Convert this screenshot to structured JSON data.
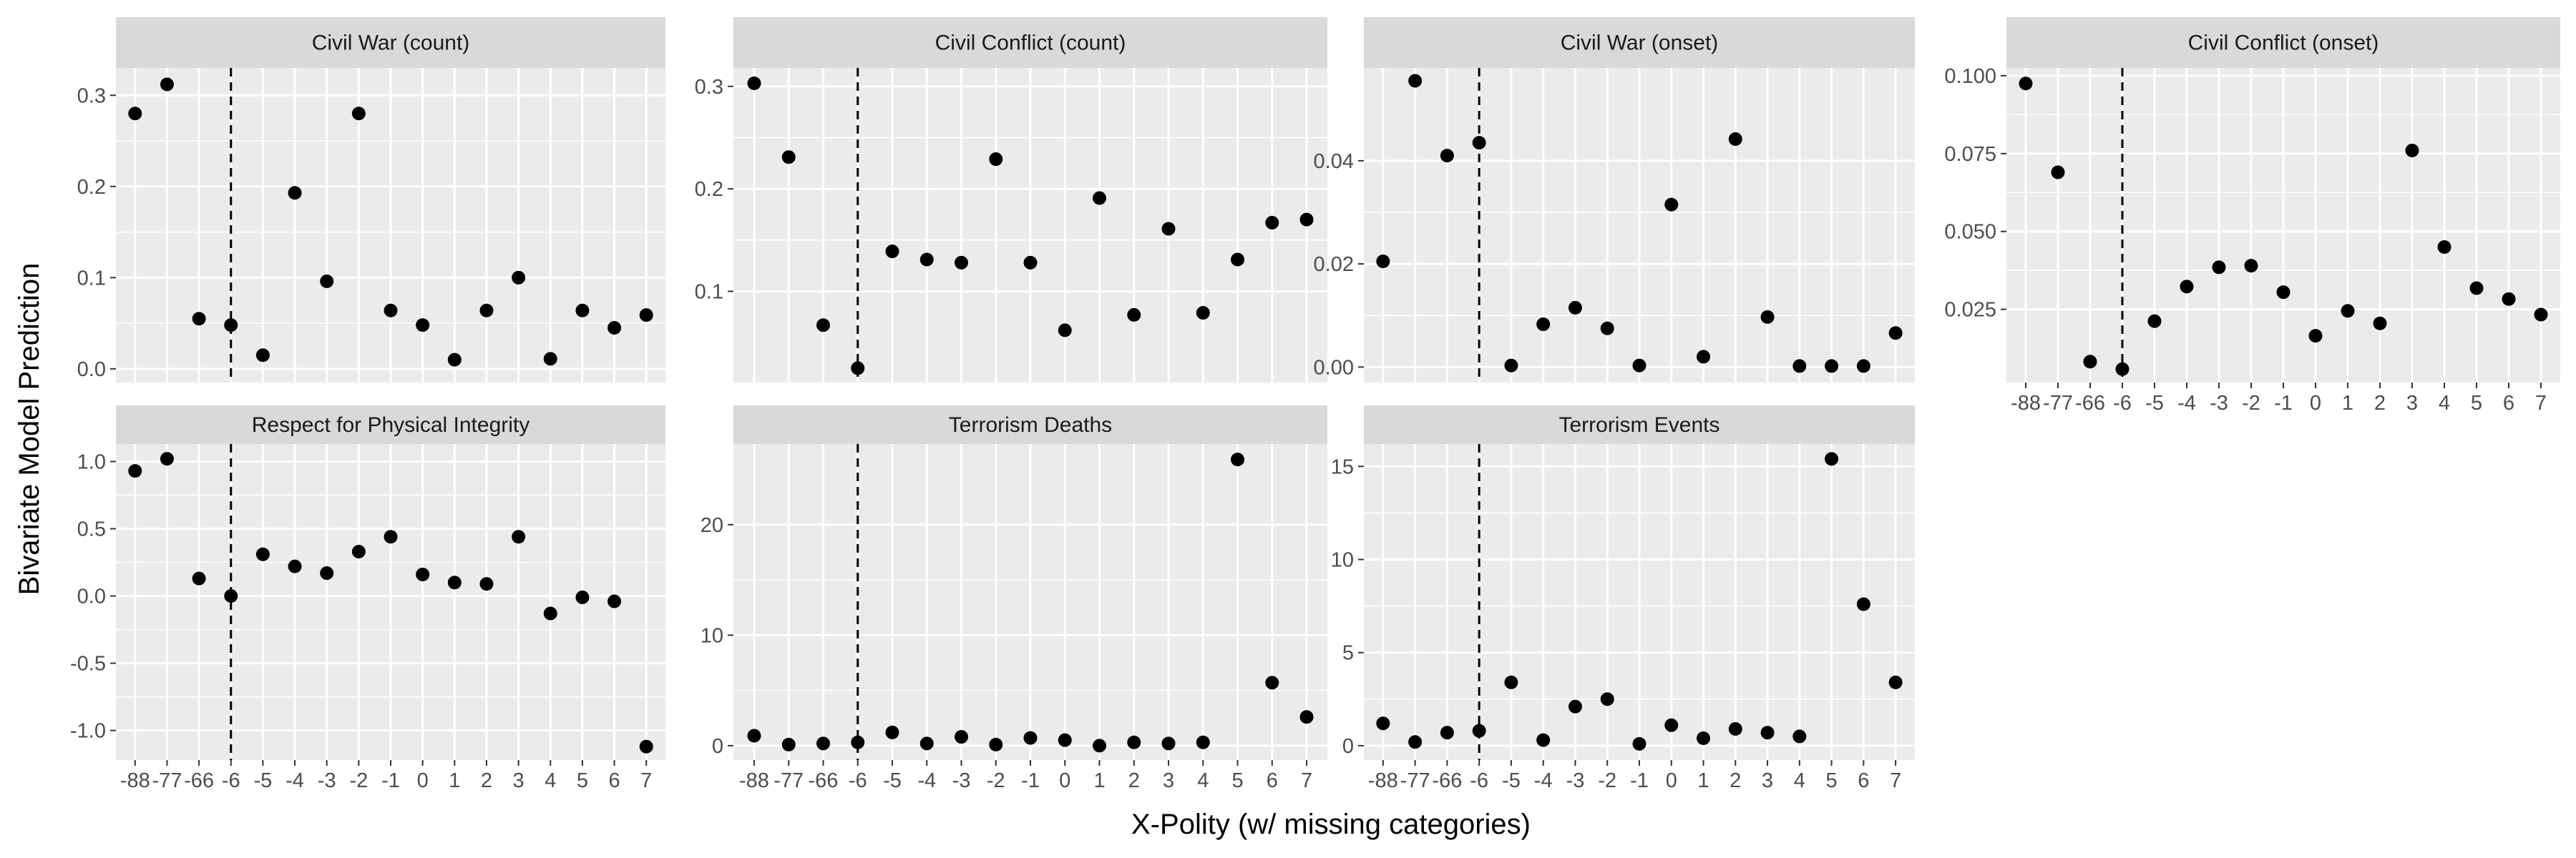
{
  "chart_data": {
    "type": "scatter",
    "facet_layout": "4 columns x 2 rows, free y scales",
    "xlabel": "X-Polity (w/ missing categories)",
    "ylabel": "Bivariate Model Prediction",
    "x_categories": [
      "-88",
      "-77",
      "-66",
      "-6",
      "-5",
      "-4",
      "-3",
      "-2",
      "-1",
      "0",
      "1",
      "2",
      "3",
      "4",
      "5",
      "6",
      "7"
    ],
    "reference_line": {
      "style": "dashed",
      "x": "-6"
    },
    "grid": true,
    "panel_background": "#ebebeb",
    "strip_background": "#d9d9d9",
    "point_color": "#000000",
    "panels": [
      {
        "title": "Civil War (count)",
        "yticks": [
          "0.0",
          "0.1",
          "0.2",
          "0.3"
        ],
        "ylim": [
          -0.015,
          0.33
        ],
        "values": [
          0.28,
          0.312,
          0.055,
          0.048,
          0.015,
          0.193,
          0.096,
          0.28,
          0.064,
          0.048,
          0.01,
          0.064,
          0.1,
          0.011,
          0.064,
          0.045,
          0.059
        ]
      },
      {
        "title": "Civil Conflict (count)",
        "yticks": [
          "0.1",
          "0.2",
          "0.3"
        ],
        "ylim": [
          0.011,
          0.318
        ],
        "values": [
          0.303,
          0.231,
          0.067,
          0.025,
          0.139,
          0.131,
          0.128,
          0.229,
          0.128,
          0.062,
          0.191,
          0.077,
          0.161,
          0.079,
          0.131,
          0.167,
          0.17
        ]
      },
      {
        "title": "Civil War (onset)",
        "yticks": [
          "0.00",
          "0.02",
          "0.04"
        ],
        "ylim": [
          -0.003,
          0.058
        ],
        "values": [
          0.0205,
          0.0555,
          0.041,
          0.0435,
          0.0003,
          0.0083,
          0.0115,
          0.0075,
          0.0003,
          0.0315,
          0.002,
          0.0442,
          0.0097,
          0.0002,
          0.0002,
          0.0002,
          0.0066
        ]
      },
      {
        "title": "Civil Conflict (onset)",
        "yticks": [
          "0.025",
          "0.050",
          "0.075",
          "0.100"
        ],
        "ylim": [
          0.0015,
          0.1025
        ],
        "values": [
          0.0975,
          0.069,
          0.0082,
          0.0058,
          0.0212,
          0.0323,
          0.0385,
          0.039,
          0.0305,
          0.0165,
          0.0245,
          0.0205,
          0.076,
          0.045,
          0.0318,
          0.0283,
          0.0233
        ]
      },
      {
        "title": "Respect for Physical Integrity",
        "yticks": [
          "-1.0",
          "-0.5",
          "0.0",
          "0.5",
          "1.0"
        ],
        "ylim": [
          -1.22,
          1.13
        ],
        "values": [
          0.93,
          1.02,
          0.13,
          0.0,
          0.31,
          0.22,
          0.17,
          0.33,
          0.44,
          0.16,
          0.1,
          0.09,
          0.44,
          -0.13,
          -0.01,
          -0.04,
          -1.12
        ]
      },
      {
        "title": "Terrorism Deaths",
        "yticks": [
          "0",
          "10",
          "20"
        ],
        "ylim": [
          -1.3,
          27.3
        ],
        "values": [
          0.9,
          0.1,
          0.2,
          0.3,
          1.2,
          0.2,
          0.8,
          0.1,
          0.7,
          0.5,
          0.0,
          0.3,
          0.2,
          0.3,
          25.9,
          5.7,
          2.6
        ]
      },
      {
        "title": "Terrorism Events",
        "yticks": [
          "0",
          "5",
          "10",
          "15"
        ],
        "ylim": [
          -0.77,
          16.2
        ],
        "values": [
          1.2,
          0.2,
          0.7,
          0.8,
          3.4,
          0.3,
          2.1,
          2.5,
          0.1,
          1.1,
          0.4,
          0.9,
          0.7,
          0.5,
          15.4,
          7.6,
          3.4
        ]
      }
    ]
  }
}
